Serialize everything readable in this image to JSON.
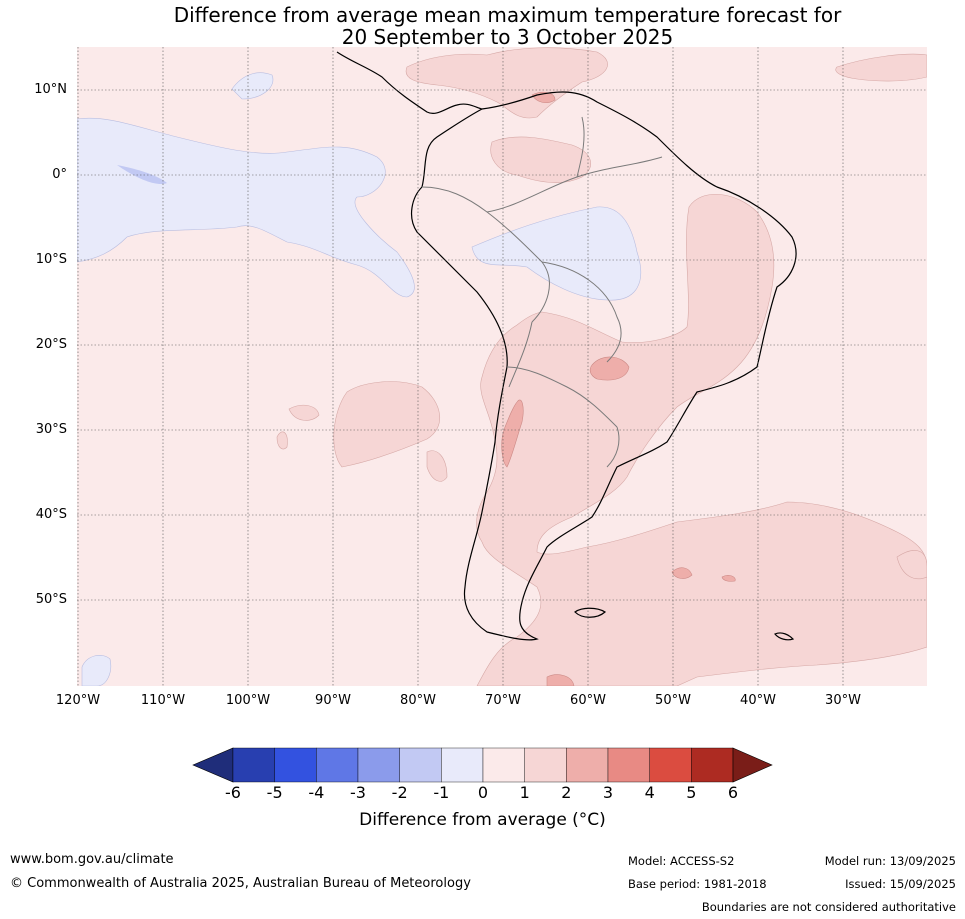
{
  "title_line1": "Difference from average mean maximum temperature forecast for",
  "title_line2": "20 September to 3 October 2025",
  "lat_labels": [
    "10°N",
    "0°",
    "10°S",
    "20°S",
    "30°S",
    "40°S",
    "50°S"
  ],
  "lon_labels": [
    "120°W",
    "110°W",
    "100°W",
    "90°W",
    "80°W",
    "70°W",
    "60°W",
    "50°W",
    "40°W",
    "30°W"
  ],
  "colorbar": {
    "ticks": [
      "-6",
      "-5",
      "-4",
      "-3",
      "-2",
      "-1",
      "0",
      "1",
      "2",
      "3",
      "4",
      "5",
      "6"
    ],
    "colors": [
      "#1f2d7a",
      "#283fb0",
      "#3352e0",
      "#5f77e6",
      "#8b9beb",
      "#c2c9f3",
      "#e8eafa",
      "#fbeaea",
      "#f6d6d5",
      "#eeaeaa",
      "#e88a84",
      "#db4c40",
      "#ad2b22",
      "#7a1d18"
    ],
    "label": "Difference from average (°C)"
  },
  "footer": {
    "website": "www.bom.gov.au/climate",
    "copyright": "© Commonwealth of Australia 2025, Australian Bureau of Meteorology",
    "model": "Model: ACCESS-S2",
    "base_period": "Base period: 1981-2018",
    "model_run": "Model run: 13/09/2025",
    "issued": "Issued: 15/09/2025",
    "disclaimer": "Boundaries are not considered authoritative"
  }
}
